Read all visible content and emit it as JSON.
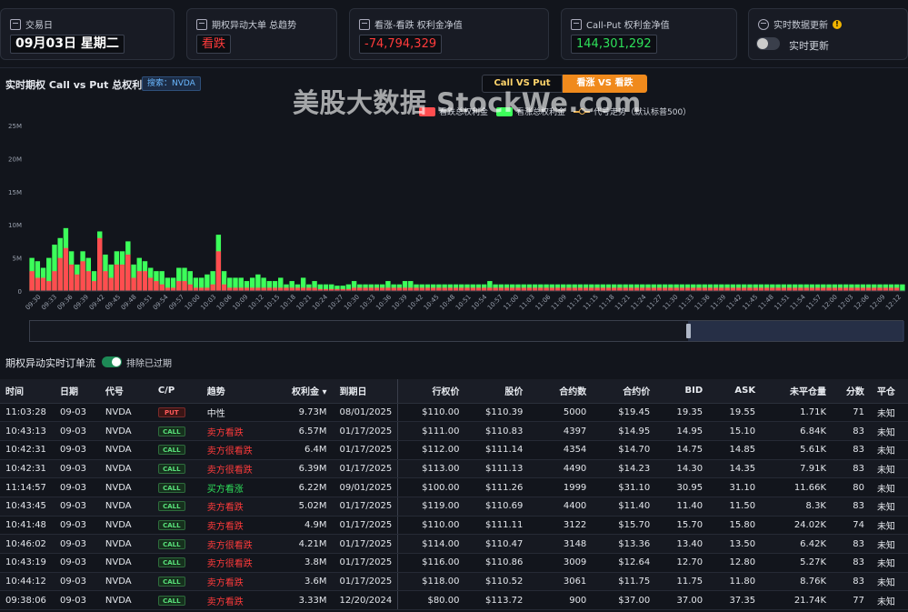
{
  "cards": [
    {
      "title": "交易日",
      "value": "09月03日 星期二",
      "color": "#ffffff"
    },
    {
      "title": "期权异动大单 总趋势",
      "value": "看跌",
      "color": "#ff3b3b"
    },
    {
      "title": "看涨-看跌 权利金净值",
      "value": "-74,794,329",
      "color": "#ff3b3b"
    },
    {
      "title": "Call-Put 权利金净值",
      "value": "144,301,292",
      "color": "#2ee05a"
    },
    {
      "title": "实时数据更新",
      "value": "实时更新",
      "color": "#d0d4dc"
    }
  ],
  "chart_section": {
    "title": "实时期权 Call vs Put 总权利金",
    "search_badge": "搜索：NVDA",
    "toggle_call_put": "Call VS Put",
    "toggle_bull_bear": "看涨 VS 看跌",
    "watermark": "美股大数据 StockWe.com"
  },
  "chart_data": {
    "type": "bar",
    "yticks": [
      "25M",
      "20M",
      "15M",
      "10M",
      "5M",
      "0"
    ],
    "ylim": [
      0,
      25
    ],
    "xticks": [
      "09:30",
      "09:33",
      "09:36",
      "09:39",
      "09:42",
      "09:45",
      "09:48",
      "09:51",
      "09:54",
      "09:57",
      "10:00",
      "10:03",
      "10:06",
      "10:09",
      "10:12",
      "10:15",
      "10:18",
      "10:21",
      "10:24",
      "10:27",
      "10:30",
      "10:33",
      "10:36",
      "10:39",
      "10:42",
      "10:45",
      "10:48",
      "10:51",
      "10:54",
      "10:57",
      "11:00",
      "11:03",
      "11:06",
      "11:09",
      "11:12",
      "11:15",
      "11:18",
      "11:21",
      "11:24",
      "11:27",
      "11:30",
      "11:33",
      "11:36",
      "11:39",
      "11:42",
      "11:45",
      "11:48",
      "11:51",
      "11:54",
      "11:57",
      "12:00",
      "12:03",
      "12:06",
      "12:09",
      "12:12"
    ],
    "legend": [
      {
        "name": "看跌总权利金",
        "color": "#ff4d4f"
      },
      {
        "name": "看涨总权利金",
        "color": "#3cff5a"
      },
      {
        "name": "代号走势（默认标普500）",
        "color": "#e0a84a"
      }
    ],
    "bear_values": [
      3,
      2,
      2,
      1.5,
      3,
      5,
      6.5,
      4,
      2.5,
      4.5,
      3,
      1.5,
      8,
      3,
      2,
      4,
      4,
      5.5,
      2,
      3,
      3,
      2,
      1.5,
      1,
      0.5,
      0.5,
      1.5,
      1.5,
      1,
      0.5,
      0.5,
      0.5,
      1,
      6,
      1,
      0.5,
      0.5,
      0.5,
      0.5,
      0.5,
      0.5,
      0.5,
      0.5,
      0.5,
      0.5,
      0.5,
      0.5,
      0.5,
      0.5,
      0.5,
      0.5,
      0.3,
      0.3,
      0.3,
      0.3,
      0.3,
      0.3,
      0.5,
      0.5,
      0.5,
      0.5,
      0.5,
      0.5,
      0.5,
      0.5,
      0.5,
      0.5,
      0.5,
      0.5,
      0.5,
      0.5,
      0.5,
      0.5,
      0.5,
      0.5,
      0.5,
      0.5,
      0.5,
      0.5,
      0.5,
      0.5,
      0.5,
      0.5,
      0.5,
      0.5,
      0.5,
      0.5,
      0.5,
      0.5,
      0.5,
      0.5,
      0.5,
      0.5,
      0.5,
      0.5,
      0.5,
      0.5,
      0.5,
      0.5,
      0.5,
      0.5,
      0.5,
      0.5,
      0.5,
      0.5,
      0.5,
      0.5,
      0.5,
      0.5,
      0.5,
      0.5,
      0.5,
      0.5,
      0.5,
      0.5,
      0.5,
      0.5,
      0.5,
      0.5,
      0.5,
      0.5,
      0.5,
      0.5,
      0.5,
      0.5,
      0.5,
      0.5,
      0.5,
      0.5,
      0.5,
      0.5,
      0.5,
      0.5,
      0.5,
      0.5,
      0.5,
      0.5,
      0.5,
      0.5,
      0.5,
      0.5,
      0.5,
      0.5,
      0.5,
      0.5,
      0.5,
      0.5,
      0.5,
      0.5,
      0.5,
      0.5,
      0.5,
      0.5,
      0.5
    ],
    "bull_values": [
      5,
      4.5,
      3.5,
      5,
      7,
      8,
      9.5,
      6,
      4,
      6,
      5,
      3,
      9,
      5.5,
      4,
      6,
      6,
      7.5,
      4,
      5,
      4.5,
      3.5,
      3,
      3,
      2,
      2,
      3.5,
      3.5,
      3,
      2,
      2,
      2.5,
      3,
      8.5,
      3,
      2,
      2,
      2,
      1.5,
      2,
      2.5,
      2,
      1.5,
      1.5,
      2,
      1,
      1.5,
      1,
      2,
      1,
      1.5,
      1,
      1,
      1,
      0.8,
      0.8,
      1,
      1.5,
      1,
      1,
      1,
      1,
      1,
      1.5,
      1,
      1,
      1.5,
      1.5,
      1,
      1,
      1,
      1,
      1,
      1,
      1,
      1,
      1,
      1,
      1,
      1,
      1,
      1.5,
      1,
      1,
      1,
      1,
      1,
      1,
      1,
      1,
      1,
      1,
      1,
      1,
      1,
      1,
      1,
      1,
      1,
      1,
      1,
      1,
      1,
      1,
      1,
      1,
      1,
      1,
      1,
      1,
      1,
      1,
      1,
      1,
      1,
      1,
      1,
      1,
      1,
      1,
      1,
      1,
      1,
      1,
      1,
      1,
      1,
      1,
      1,
      1,
      1,
      1,
      1,
      1,
      1,
      1,
      1,
      1,
      1,
      1,
      1,
      1,
      1,
      1,
      1,
      1,
      1,
      1,
      1,
      1,
      1,
      1,
      1,
      1,
      1
    ]
  },
  "flow": {
    "title": "期权异动实时订单流",
    "switch_label": "排除已过期"
  },
  "table": {
    "headers": [
      "时间",
      "日期",
      "代号",
      "C/P",
      "趋势",
      "权利金 ▾",
      "到期日",
      "行权价",
      "股价",
      "合约数",
      "合约价",
      "BID",
      "ASK",
      "未平仓量",
      "分数",
      "平仓"
    ],
    "rows": [
      [
        "11:03:28",
        "09-03",
        "NVDA",
        "PUT",
        "中性",
        "9.73M",
        "08/01/2025",
        "$110.00",
        "$110.39",
        "5000",
        "$19.45",
        "19.35",
        "19.55",
        "1.71K",
        "71",
        "未知"
      ],
      [
        "10:43:13",
        "09-03",
        "NVDA",
        "CALL",
        "卖方看跌",
        "6.57M",
        "01/17/2025",
        "$111.00",
        "$110.83",
        "4397",
        "$14.95",
        "14.95",
        "15.10",
        "6.84K",
        "83",
        "未知"
      ],
      [
        "10:42:31",
        "09-03",
        "NVDA",
        "CALL",
        "卖方很看跌",
        "6.4M",
        "01/17/2025",
        "$112.00",
        "$111.14",
        "4354",
        "$14.70",
        "14.75",
        "14.85",
        "5.61K",
        "83",
        "未知"
      ],
      [
        "10:42:31",
        "09-03",
        "NVDA",
        "CALL",
        "卖方很看跌",
        "6.39M",
        "01/17/2025",
        "$113.00",
        "$111.13",
        "4490",
        "$14.23",
        "14.30",
        "14.35",
        "7.91K",
        "83",
        "未知"
      ],
      [
        "11:14:57",
        "09-03",
        "NVDA",
        "CALL",
        "买方看涨",
        "6.22M",
        "09/01/2025",
        "$100.00",
        "$111.26",
        "1999",
        "$31.10",
        "30.95",
        "31.10",
        "11.66K",
        "80",
        "未知"
      ],
      [
        "10:43:45",
        "09-03",
        "NVDA",
        "CALL",
        "卖方看跌",
        "5.02M",
        "01/17/2025",
        "$119.00",
        "$110.69",
        "4400",
        "$11.40",
        "11.40",
        "11.50",
        "8.3K",
        "83",
        "未知"
      ],
      [
        "10:41:48",
        "09-03",
        "NVDA",
        "CALL",
        "卖方看跌",
        "4.9M",
        "01/17/2025",
        "$110.00",
        "$111.11",
        "3122",
        "$15.70",
        "15.70",
        "15.80",
        "24.02K",
        "74",
        "未知"
      ],
      [
        "10:46:02",
        "09-03",
        "NVDA",
        "CALL",
        "卖方很看跌",
        "4.21M",
        "01/17/2025",
        "$114.00",
        "$110.47",
        "3148",
        "$13.36",
        "13.40",
        "13.50",
        "6.42K",
        "83",
        "未知"
      ],
      [
        "10:43:19",
        "09-03",
        "NVDA",
        "CALL",
        "卖方很看跌",
        "3.8M",
        "01/17/2025",
        "$116.00",
        "$110.86",
        "3009",
        "$12.64",
        "12.70",
        "12.80",
        "5.27K",
        "83",
        "未知"
      ],
      [
        "10:44:12",
        "09-03",
        "NVDA",
        "CALL",
        "卖方看跌",
        "3.6M",
        "01/17/2025",
        "$118.00",
        "$110.52",
        "3061",
        "$11.75",
        "11.75",
        "11.80",
        "8.76K",
        "83",
        "未知"
      ],
      [
        "09:38:06",
        "09-03",
        "NVDA",
        "CALL",
        "卖方看跌",
        "3.33M",
        "12/20/2024",
        "$80.00",
        "$113.72",
        "900",
        "$37.00",
        "37.00",
        "37.35",
        "21.74K",
        "77",
        "未知"
      ]
    ]
  }
}
